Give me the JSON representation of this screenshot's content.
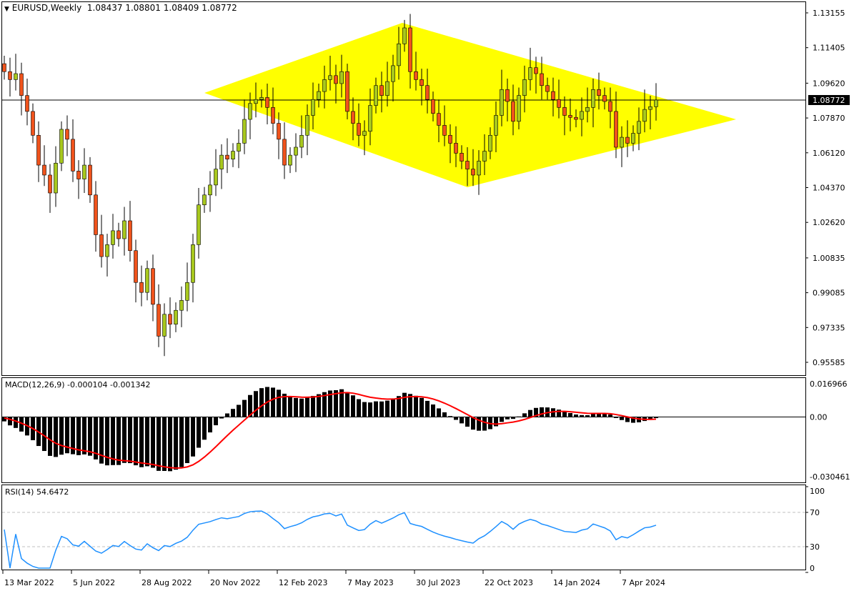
{
  "header": {
    "symbol_timeframe": "EURUSD,Weekly",
    "ohlc": "1.08437 1.08801 1.08409 1.08772"
  },
  "chart_data": [
    {
      "type": "candlestick",
      "title": "EURUSD,Weekly",
      "first_week": "13 Mar 2022",
      "closes": [
        1.102,
        1.098,
        1.101,
        1.09,
        1.082,
        1.07,
        1.055,
        1.05,
        1.041,
        1.056,
        1.073,
        1.068,
        1.052,
        1.048,
        1.055,
        1.04,
        1.02,
        1.009,
        1.015,
        1.022,
        1.018,
        1.027,
        1.012,
        0.996,
        0.991,
        1.003,
        0.985,
        0.969,
        0.98,
        0.975,
        0.982,
        0.987,
        0.996,
        1.015,
        1.035,
        1.04,
        1.045,
        1.053,
        1.06,
        1.058,
        1.062,
        1.066,
        1.078,
        1.086,
        1.088,
        1.089,
        1.084,
        1.076,
        1.068,
        1.055,
        1.06,
        1.064,
        1.07,
        1.08,
        1.088,
        1.092,
        1.098,
        1.1,
        1.096,
        1.102,
        1.082,
        1.076,
        1.07,
        1.072,
        1.085,
        1.095,
        1.09,
        1.097,
        1.105,
        1.116,
        1.124,
        1.102,
        1.098,
        1.095,
        1.088,
        1.081,
        1.075,
        1.07,
        1.066,
        1.061,
        1.057,
        1.053,
        1.05,
        1.057,
        1.062,
        1.07,
        1.08,
        1.093,
        1.087,
        1.077,
        1.09,
        1.098,
        1.104,
        1.101,
        1.095,
        1.092,
        1.088,
        1.084,
        1.08,
        1.079,
        1.078,
        1.082,
        1.084,
        1.093,
        1.09,
        1.087,
        1.082,
        1.064,
        1.069,
        1.066,
        1.071,
        1.077,
        1.083,
        1.08437,
        1.08772
      ],
      "y_ticks": [
        "1.13155",
        "1.11405",
        "1.09620",
        "1.07870",
        "1.06120",
        "1.04370",
        "1.02620",
        "1.00835",
        "0.99085",
        "0.97335",
        "0.95585"
      ],
      "ylim": [
        0.95585,
        1.13155
      ],
      "current_price": "1.08772",
      "x_ticks": [
        {
          "label": "13 Mar 2022",
          "week": 0
        },
        {
          "label": "5 Jun 2022",
          "week": 12
        },
        {
          "label": "28 Aug 2022",
          "week": 24
        },
        {
          "label": "20 Nov 2022",
          "week": 36
        },
        {
          "label": "12 Feb 2023",
          "week": 48
        },
        {
          "label": "7 May 2023",
          "week": 60
        },
        {
          "label": "30 Jul 2023",
          "week": 72
        },
        {
          "label": "22 Oct 2023",
          "week": 84
        },
        {
          "label": "14 Jan 2024",
          "week": 96
        },
        {
          "label": "7 Apr 2024",
          "week": 108
        }
      ],
      "diamond": [
        {
          "week": 35,
          "price": 1.0913
        },
        {
          "week": 69.6,
          "price": 1.1265
        },
        {
          "week": 128,
          "price": 1.078
        },
        {
          "week": 81,
          "price": 1.0439
        }
      ],
      "colors": {
        "bull": "#a8c81e",
        "bear": "#f0531c",
        "diamond": "#ffff00",
        "wick": "#000000"
      }
    },
    {
      "type": "bar+line",
      "title": "MACD(12,26,9) -0.000104 -0.001342",
      "y_ticks": [
        "0.016966",
        "0.00",
        "-0.030461"
      ],
      "ylim": [
        -0.030461,
        0.016966
      ],
      "colors": {
        "histogram": "#000000",
        "signal": "#ff0000"
      }
    },
    {
      "type": "line",
      "title": "RSI(14) 54.6472",
      "y_ticks": [
        "100",
        "70",
        "30",
        "0"
      ],
      "ylim": [
        0,
        100
      ],
      "levels": [
        70,
        30
      ],
      "colors": {
        "line": "#1e90ff"
      }
    }
  ]
}
